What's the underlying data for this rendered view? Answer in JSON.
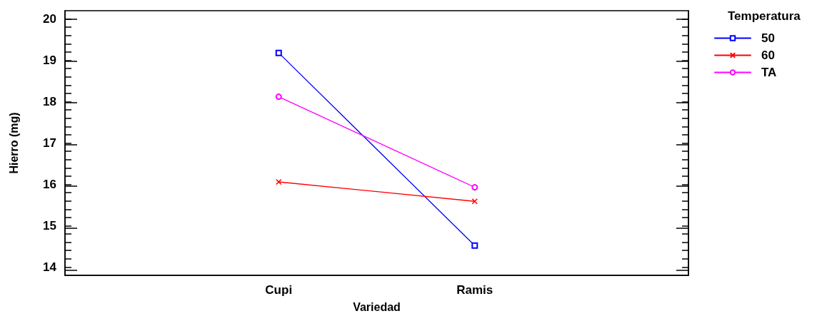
{
  "chart_data": {
    "type": "line",
    "xlabel": "Variedad",
    "ylabel": "Hierro (mg)",
    "legend_title": "Temperatura",
    "legend": "top right",
    "categories": [
      "Cupi",
      "Ramis"
    ],
    "series": [
      {
        "name": "50",
        "color": "#0000ff",
        "marker": "square",
        "values": [
          19.18,
          14.52
        ]
      },
      {
        "name": "60",
        "color": "#ff0000",
        "marker": "cross",
        "values": [
          16.06,
          15.59
        ]
      },
      {
        "name": "TA",
        "color": "#ff00ff",
        "marker": "circle",
        "values": [
          18.12,
          15.93
        ]
      }
    ],
    "ylim": [
      13.8,
      20.2
    ],
    "yticks": [
      14,
      {
        "value": 14.2,
        "label": null
      },
      {
        "value": 14.4,
        "label": null
      },
      {
        "value": 14.6,
        "label": null
      },
      {
        "value": 14.8,
        "label": null
      },
      15,
      {
        "value": 15.2,
        "label": null
      },
      {
        "value": 15.4,
        "label": null
      },
      {
        "value": 15.6,
        "label": null
      },
      {
        "value": 15.8,
        "label": null
      },
      16,
      {
        "value": 16.2,
        "label": null
      },
      {
        "value": 16.4,
        "label": null
      },
      {
        "value": 16.6,
        "label": null
      },
      {
        "value": 16.8,
        "label": null
      },
      17,
      {
        "value": 17.2,
        "label": null
      },
      {
        "value": 17.4,
        "label": null
      },
      {
        "value": 17.6,
        "label": null
      },
      {
        "value": 17.8,
        "label": null
      },
      18,
      {
        "value": 18.2,
        "label": null
      },
      {
        "value": 18.4,
        "label": null
      },
      {
        "value": 18.6,
        "label": null
      },
      {
        "value": 18.8,
        "label": null
      },
      19,
      {
        "value": 19.2,
        "label": null
      },
      {
        "value": 19.4,
        "label": null
      },
      {
        "value": 19.6,
        "label": null
      },
      {
        "value": 19.8,
        "label": null
      },
      20
    ],
    "line_style": "solid"
  }
}
